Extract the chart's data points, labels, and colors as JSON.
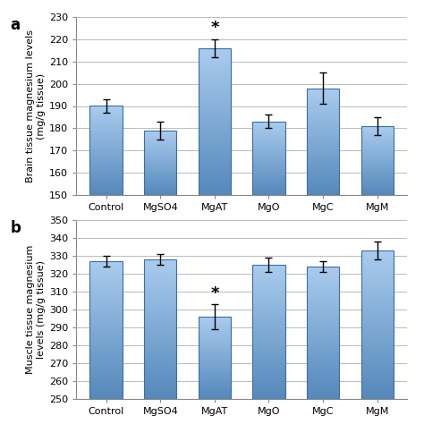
{
  "top": {
    "categories": [
      "Control",
      "MgSO4",
      "MgAT",
      "MgO",
      "MgC",
      "MgM"
    ],
    "values": [
      190,
      179,
      216,
      183,
      198,
      181
    ],
    "errors": [
      3,
      4,
      4,
      3,
      7,
      4
    ],
    "ylim": [
      150,
      230
    ],
    "yticks": [
      150,
      160,
      170,
      180,
      190,
      200,
      210,
      220,
      230
    ],
    "ylabel": "Brain tissue magnesium levels\n(mg/g tissue)",
    "significant": [
      false,
      false,
      true,
      false,
      false,
      false
    ],
    "label": "a"
  },
  "bottom": {
    "categories": [
      "Control",
      "MgSO4",
      "MgAT",
      "MgO",
      "MgC",
      "MgM"
    ],
    "values": [
      327,
      328,
      296,
      325,
      324,
      333
    ],
    "errors": [
      3,
      3,
      7,
      4,
      3,
      5
    ],
    "ylim": [
      250,
      350
    ],
    "yticks": [
      250,
      260,
      270,
      280,
      290,
      300,
      310,
      320,
      330,
      340,
      350
    ],
    "ylabel": "Muscle tissue magnesium\nlevels (mg/g tissue)",
    "significant": [
      false,
      false,
      true,
      false,
      false,
      false
    ],
    "label": "b"
  },
  "figure_bg": "#ffffff",
  "axes_bg": "#ffffff",
  "grid_color": "#bbbbbb",
  "bar_color_top": "#aaccee",
  "bar_color_bottom": "#5588bb",
  "bar_edge_color": "#3a6ea5",
  "error_color": "#000000",
  "tick_fontsize": 8,
  "label_fontsize": 8,
  "panel_label_fontsize": 12,
  "sig_fontsize": 13,
  "bar_width": 0.6
}
